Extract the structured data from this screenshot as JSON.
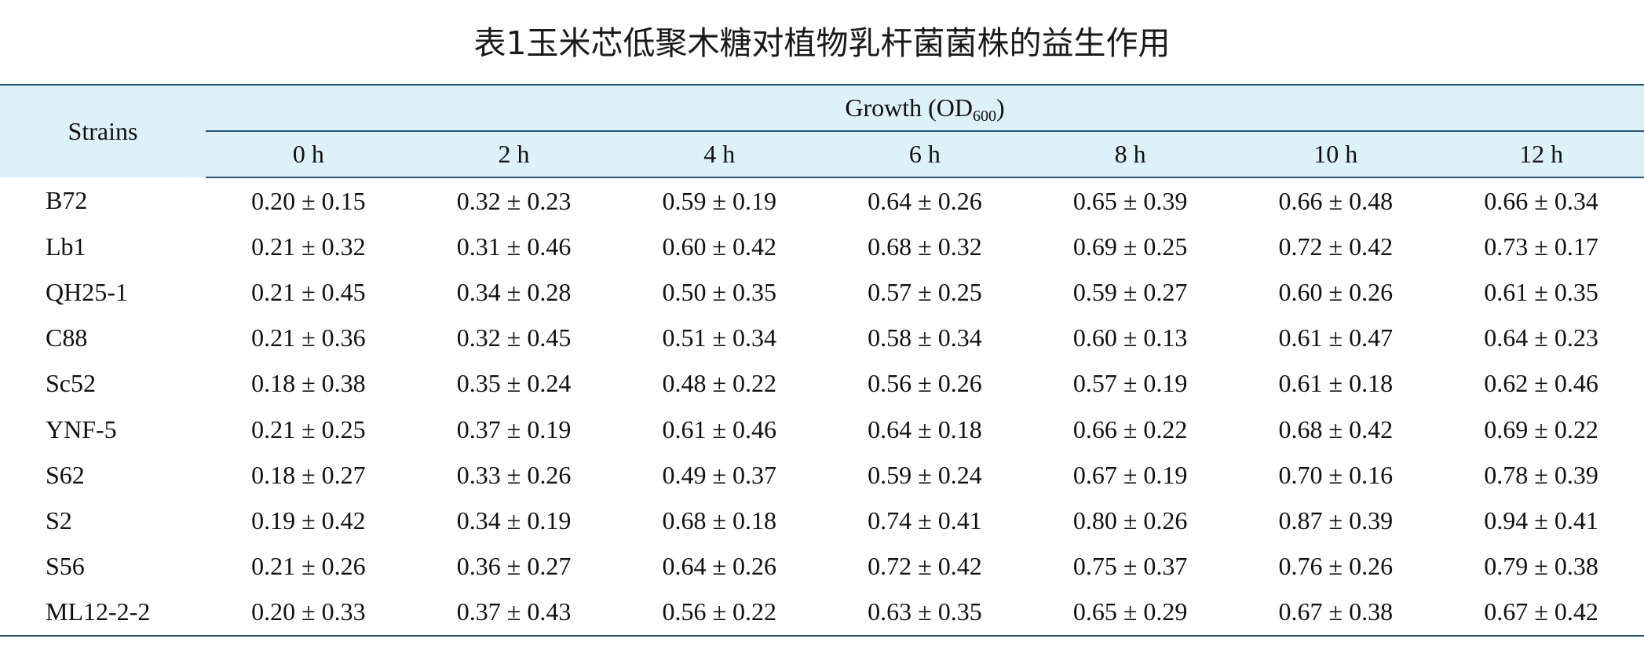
{
  "title": "表1玉米芯低聚木糖对植物乳杆菌菌株的益生作用",
  "table": {
    "strains_header": "Strains",
    "growth_header": "Growth (OD",
    "growth_header_sub": "600",
    "growth_header_close": ")",
    "time_headers": [
      "0 h",
      "2 h",
      "4 h",
      "6 h",
      "8 h",
      "10 h",
      "12 h"
    ],
    "rows": [
      {
        "strain": "B72",
        "values": [
          "0.20 ± 0.15",
          "0.32 ± 0.23",
          "0.59 ± 0.19",
          "0.64 ± 0.26",
          "0.65 ± 0.39",
          "0.66 ± 0.48",
          "0.66 ± 0.34"
        ]
      },
      {
        "strain": "Lb1",
        "values": [
          "0.21 ± 0.32",
          "0.31 ± 0.46",
          "0.60 ± 0.42",
          "0.68 ± 0.32",
          "0.69 ± 0.25",
          "0.72 ± 0.42",
          "0.73 ± 0.17"
        ]
      },
      {
        "strain": "QH25-1",
        "values": [
          "0.21 ± 0.45",
          "0.34 ± 0.28",
          "0.50 ± 0.35",
          "0.57 ± 0.25",
          "0.59 ± 0.27",
          "0.60 ± 0.26",
          "0.61 ± 0.35"
        ]
      },
      {
        "strain": "C88",
        "values": [
          "0.21 ± 0.36",
          "0.32 ± 0.45",
          "0.51 ± 0.34",
          "0.58 ± 0.34",
          "0.60 ± 0.13",
          "0.61 ± 0.47",
          "0.64 ± 0.23"
        ]
      },
      {
        "strain": "Sc52",
        "values": [
          "0.18 ± 0.38",
          "0.35 ± 0.24",
          "0.48 ± 0.22",
          "0.56 ± 0.26",
          "0.57 ± 0.19",
          "0.61 ± 0.18",
          "0.62 ± 0.46"
        ]
      },
      {
        "strain": "YNF-5",
        "values": [
          "0.21 ± 0.25",
          "0.37 ± 0.19",
          "0.61 ± 0.46",
          "0.64 ± 0.18",
          "0.66 ± 0.22",
          "0.68 ± 0.42",
          "0.69 ± 0.22"
        ]
      },
      {
        "strain": "S62",
        "values": [
          "0.18 ± 0.27",
          "0.33 ± 0.26",
          "0.49 ± 0.37",
          "0.59 ± 0.24",
          "0.67 ± 0.19",
          "0.70 ± 0.16",
          "0.78 ± 0.39"
        ]
      },
      {
        "strain": "S2",
        "values": [
          "0.19 ± 0.42",
          "0.34 ± 0.19",
          "0.68 ± 0.18",
          "0.74 ± 0.41",
          "0.80 ± 0.26",
          "0.87 ± 0.39",
          "0.94 ± 0.41"
        ]
      },
      {
        "strain": "S56",
        "values": [
          "0.21 ± 0.26",
          "0.36 ± 0.27",
          "0.64 ± 0.26",
          "0.72 ± 0.42",
          "0.75 ± 0.37",
          "0.76 ± 0.26",
          "0.79 ± 0.38"
        ]
      },
      {
        "strain": "ML12-2-2",
        "values": [
          "0.20 ± 0.33",
          "0.37 ± 0.43",
          "0.56 ± 0.22",
          "0.63 ± 0.35",
          "0.65 ± 0.29",
          "0.67 ± 0.38",
          "0.67 ± 0.42"
        ]
      }
    ]
  },
  "colors": {
    "header_background": "#ddf1f8",
    "rule_color": "#2a5470",
    "text": "#111111"
  }
}
